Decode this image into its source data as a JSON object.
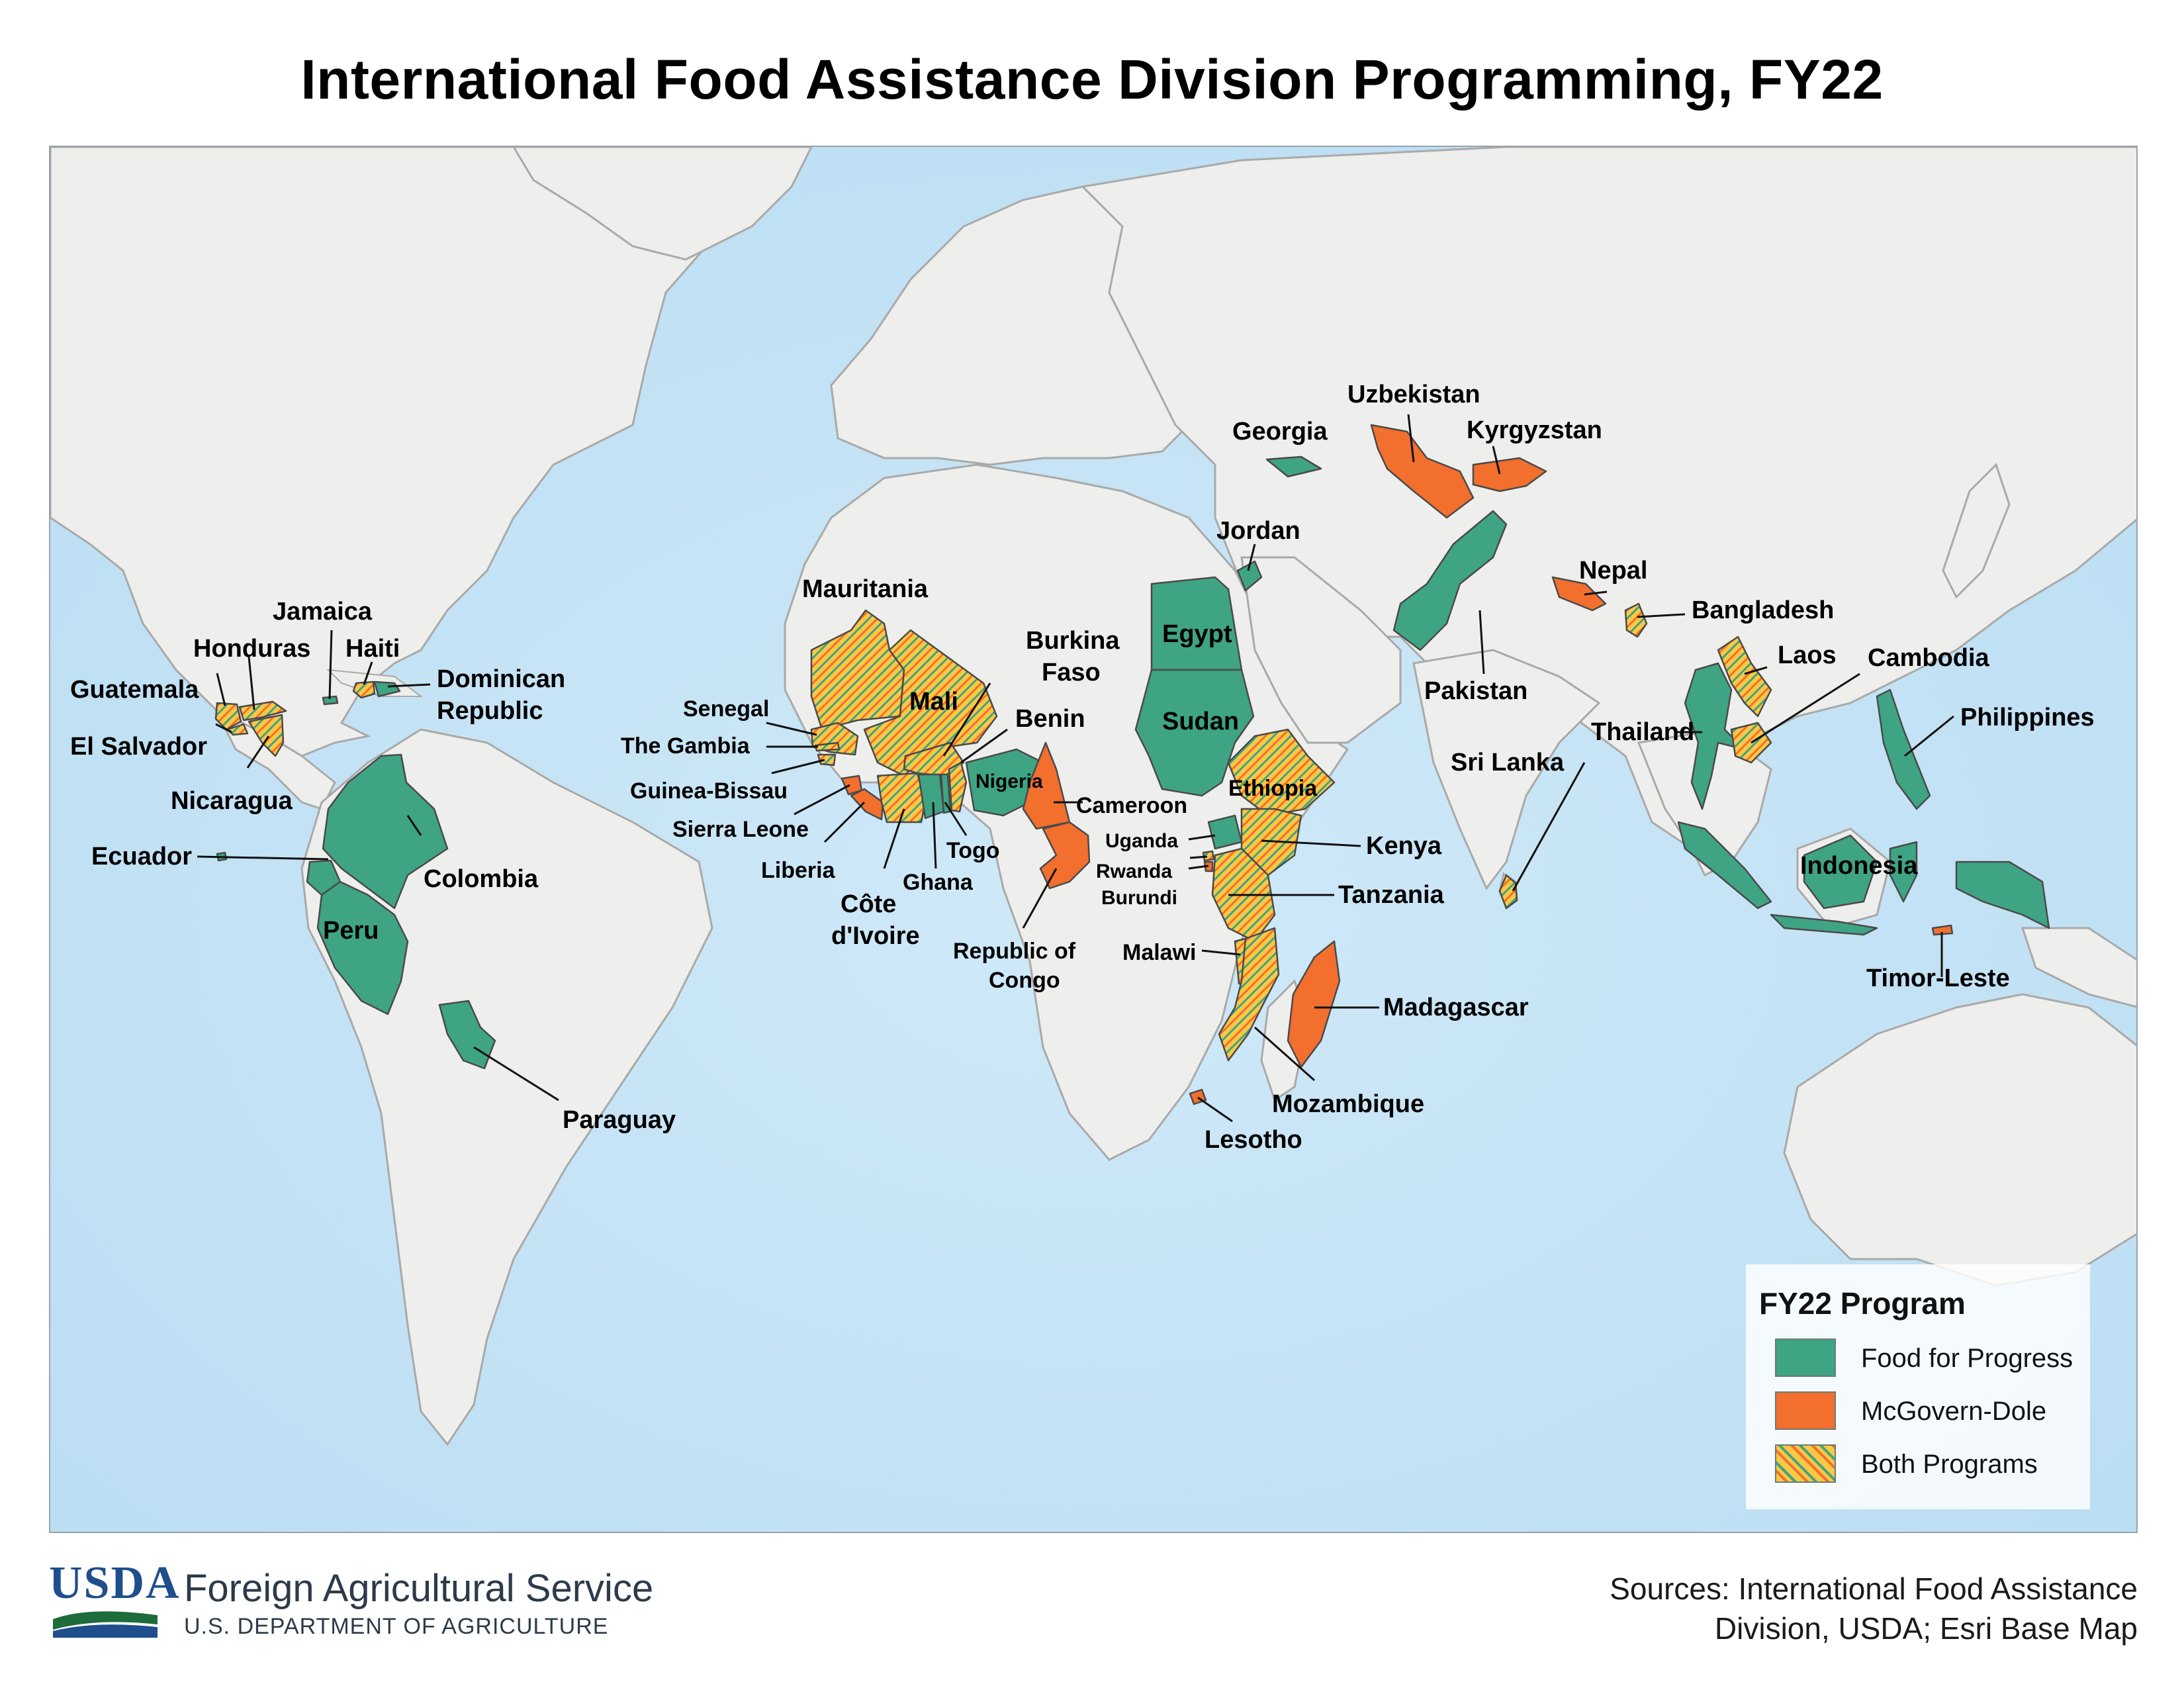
{
  "title": "International Food Assistance Division Programming, FY22",
  "colors": {
    "ocean": "#cfe8f7",
    "land": "#eeeeec",
    "border": "#a9a9a9",
    "food_for_progress": "#3ea484",
    "mcgovern_dole": "#f26f2e",
    "both_yellow": "#fcc843"
  },
  "legend": {
    "title": "FY22 Program",
    "items": [
      {
        "label": "Food for Progress",
        "program": "food_for_progress"
      },
      {
        "label": "McGovern-Dole",
        "program": "mcgovern_dole"
      },
      {
        "label": "Both Programs",
        "program": "both"
      }
    ]
  },
  "countries": [
    {
      "name": "Guatemala",
      "program": "both"
    },
    {
      "name": "Honduras",
      "program": "both"
    },
    {
      "name": "El Salvador",
      "program": "both"
    },
    {
      "name": "Nicaragua",
      "program": "both"
    },
    {
      "name": "Jamaica",
      "program": "food_for_progress"
    },
    {
      "name": "Haiti",
      "program": "both"
    },
    {
      "name": "Dominican Republic",
      "program": "food_for_progress"
    },
    {
      "name": "Ecuador",
      "program": "food_for_progress"
    },
    {
      "name": "Colombia",
      "program": "food_for_progress"
    },
    {
      "name": "Peru",
      "program": "food_for_progress"
    },
    {
      "name": "Paraguay",
      "program": "food_for_progress"
    },
    {
      "name": "Mauritania",
      "program": "both"
    },
    {
      "name": "Mali",
      "program": "both"
    },
    {
      "name": "Senegal",
      "program": "both"
    },
    {
      "name": "The Gambia",
      "program": "both"
    },
    {
      "name": "Guinea-Bissau",
      "program": "both"
    },
    {
      "name": "Sierra Leone",
      "program": "mcgovern_dole"
    },
    {
      "name": "Liberia",
      "program": "mcgovern_dole"
    },
    {
      "name": "Côte d'Ivoire",
      "program": "both"
    },
    {
      "name": "Ghana",
      "program": "food_for_progress"
    },
    {
      "name": "Togo",
      "program": "food_for_progress"
    },
    {
      "name": "Burkina Faso",
      "program": "both"
    },
    {
      "name": "Benin",
      "program": "both"
    },
    {
      "name": "Nigeria",
      "program": "food_for_progress"
    },
    {
      "name": "Cameroon",
      "program": "mcgovern_dole"
    },
    {
      "name": "Republic of Congo",
      "program": "mcgovern_dole"
    },
    {
      "name": "Egypt",
      "program": "food_for_progress"
    },
    {
      "name": "Jordan",
      "program": "food_for_progress"
    },
    {
      "name": "Sudan",
      "program": "food_for_progress"
    },
    {
      "name": "Ethiopia",
      "program": "both"
    },
    {
      "name": "Uganda",
      "program": "food_for_progress"
    },
    {
      "name": "Kenya",
      "program": "both"
    },
    {
      "name": "Rwanda",
      "program": "both"
    },
    {
      "name": "Burundi",
      "program": "mcgovern_dole"
    },
    {
      "name": "Tanzania",
      "program": "both"
    },
    {
      "name": "Malawi",
      "program": "both"
    },
    {
      "name": "Mozambique",
      "program": "both"
    },
    {
      "name": "Madagascar",
      "program": "mcgovern_dole"
    },
    {
      "name": "Lesotho",
      "program": "mcgovern_dole"
    },
    {
      "name": "Georgia",
      "program": "food_for_progress"
    },
    {
      "name": "Uzbekistan",
      "program": "mcgovern_dole"
    },
    {
      "name": "Kyrgyzstan",
      "program": "mcgovern_dole"
    },
    {
      "name": "Pakistan",
      "program": "food_for_progress"
    },
    {
      "name": "Nepal",
      "program": "mcgovern_dole"
    },
    {
      "name": "Bangladesh",
      "program": "both"
    },
    {
      "name": "Sri Lanka",
      "program": "both"
    },
    {
      "name": "Thailand",
      "program": "food_for_progress"
    },
    {
      "name": "Laos",
      "program": "both"
    },
    {
      "name": "Cambodia",
      "program": "both"
    },
    {
      "name": "Philippines",
      "program": "food_for_progress"
    },
    {
      "name": "Indonesia",
      "program": "food_for_progress"
    },
    {
      "name": "Timor-Leste",
      "program": "mcgovern_dole"
    }
  ],
  "labels": {
    "guatemala": "Guatemala",
    "honduras": "Honduras",
    "el_salvador": "El Salvador",
    "nicaragua": "Nicaragua",
    "jamaica": "Jamaica",
    "haiti": "Haiti",
    "dominican_1": "Dominican",
    "dominican_2": "Republic",
    "ecuador": "Ecuador",
    "colombia": "Colombia",
    "peru": "Peru",
    "paraguay": "Paraguay",
    "mauritania": "Mauritania",
    "mali": "Mali",
    "senegal": "Senegal",
    "gambia": "The Gambia",
    "guinea_bissau": "Guinea-Bissau",
    "sierra_leone": "Sierra Leone",
    "liberia": "Liberia",
    "cote_1": "Côte",
    "cote_2": "d'Ivoire",
    "ghana": "Ghana",
    "togo": "Togo",
    "burkina_1": "Burkina",
    "burkina_2": "Faso",
    "benin": "Benin",
    "nigeria": "Nigeria",
    "cameroon": "Cameroon",
    "congo_1": "Republic of",
    "congo_2": "Congo",
    "egypt": "Egypt",
    "jordan": "Jordan",
    "sudan": "Sudan",
    "ethiopia": "Ethiopia",
    "uganda": "Uganda",
    "kenya": "Kenya",
    "rwanda": "Rwanda",
    "burundi": "Burundi",
    "tanzania": "Tanzania",
    "malawi": "Malawi",
    "mozambique": "Mozambique",
    "madagascar": "Madagascar",
    "lesotho": "Lesotho",
    "georgia": "Georgia",
    "uzbekistan": "Uzbekistan",
    "kyrgyzstan": "Kyrgyzstan",
    "pakistan": "Pakistan",
    "nepal": "Nepal",
    "bangladesh": "Bangladesh",
    "sri_lanka": "Sri Lanka",
    "thailand": "Thailand",
    "laos": "Laos",
    "cambodia": "Cambodia",
    "philippines": "Philippines",
    "indonesia": "Indonesia",
    "timor_leste": "Timor-Leste"
  },
  "footer": {
    "usda": "USDA",
    "agency": "Foreign Agricultural Service",
    "department": "U.S. DEPARTMENT OF AGRICULTURE",
    "sources_line1": "Sources: International Food Assistance",
    "sources_line2": "Division, USDA; Esri Base Map"
  }
}
